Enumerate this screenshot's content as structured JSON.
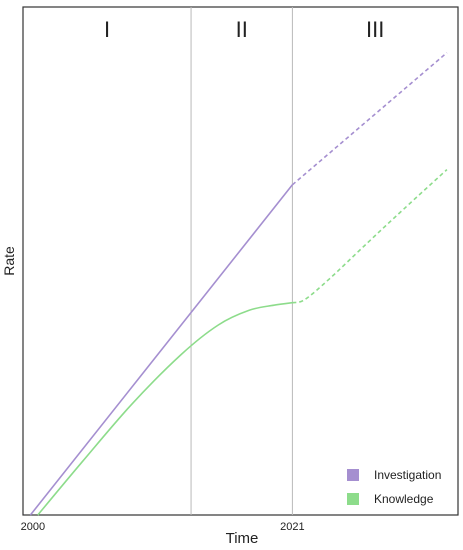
{
  "chart_data": {
    "type": "line",
    "title": "",
    "xlabel": "Time",
    "ylabel": "Rate",
    "x_ticks": [
      {
        "x": 2000,
        "label": "2000"
      },
      {
        "x": 2021,
        "label": "2021"
      }
    ],
    "xlim": [
      1999.2,
      2034.4
    ],
    "ylim": [
      0,
      100
    ],
    "grid": false,
    "phases": [
      {
        "label": "I",
        "x_start": 1999.2,
        "x_end": 2012.8
      },
      {
        "label": "II",
        "x_start": 2012.8,
        "x_end": 2021
      },
      {
        "label": "III",
        "x_start": 2021,
        "x_end": 2034.4
      }
    ],
    "series": [
      {
        "name": "Investigation",
        "color": "#a58fd0",
        "solid": [
          [
            1999.8,
            0
          ],
          [
            2021,
            65
          ]
        ],
        "dashed": [
          [
            2021,
            65
          ],
          [
            2033.5,
            91
          ]
        ]
      },
      {
        "name": "Knowledge",
        "color": "#8ddc8b",
        "solid": [
          [
            2000.4,
            0
          ],
          [
            2004,
            10.5
          ],
          [
            2008,
            21.8
          ],
          [
            2012,
            31.6
          ],
          [
            2015,
            37.4
          ],
          [
            2017.5,
            40.3
          ],
          [
            2019.5,
            41.3
          ],
          [
            2021,
            41.8
          ]
        ],
        "dashed": [
          [
            2021,
            41.8
          ],
          [
            2022,
            42.4
          ],
          [
            2024,
            46.5
          ],
          [
            2027,
            53.4
          ],
          [
            2030,
            60.2
          ],
          [
            2033.5,
            68
          ]
        ]
      }
    ],
    "legend": {
      "position": "bottom-right"
    }
  }
}
